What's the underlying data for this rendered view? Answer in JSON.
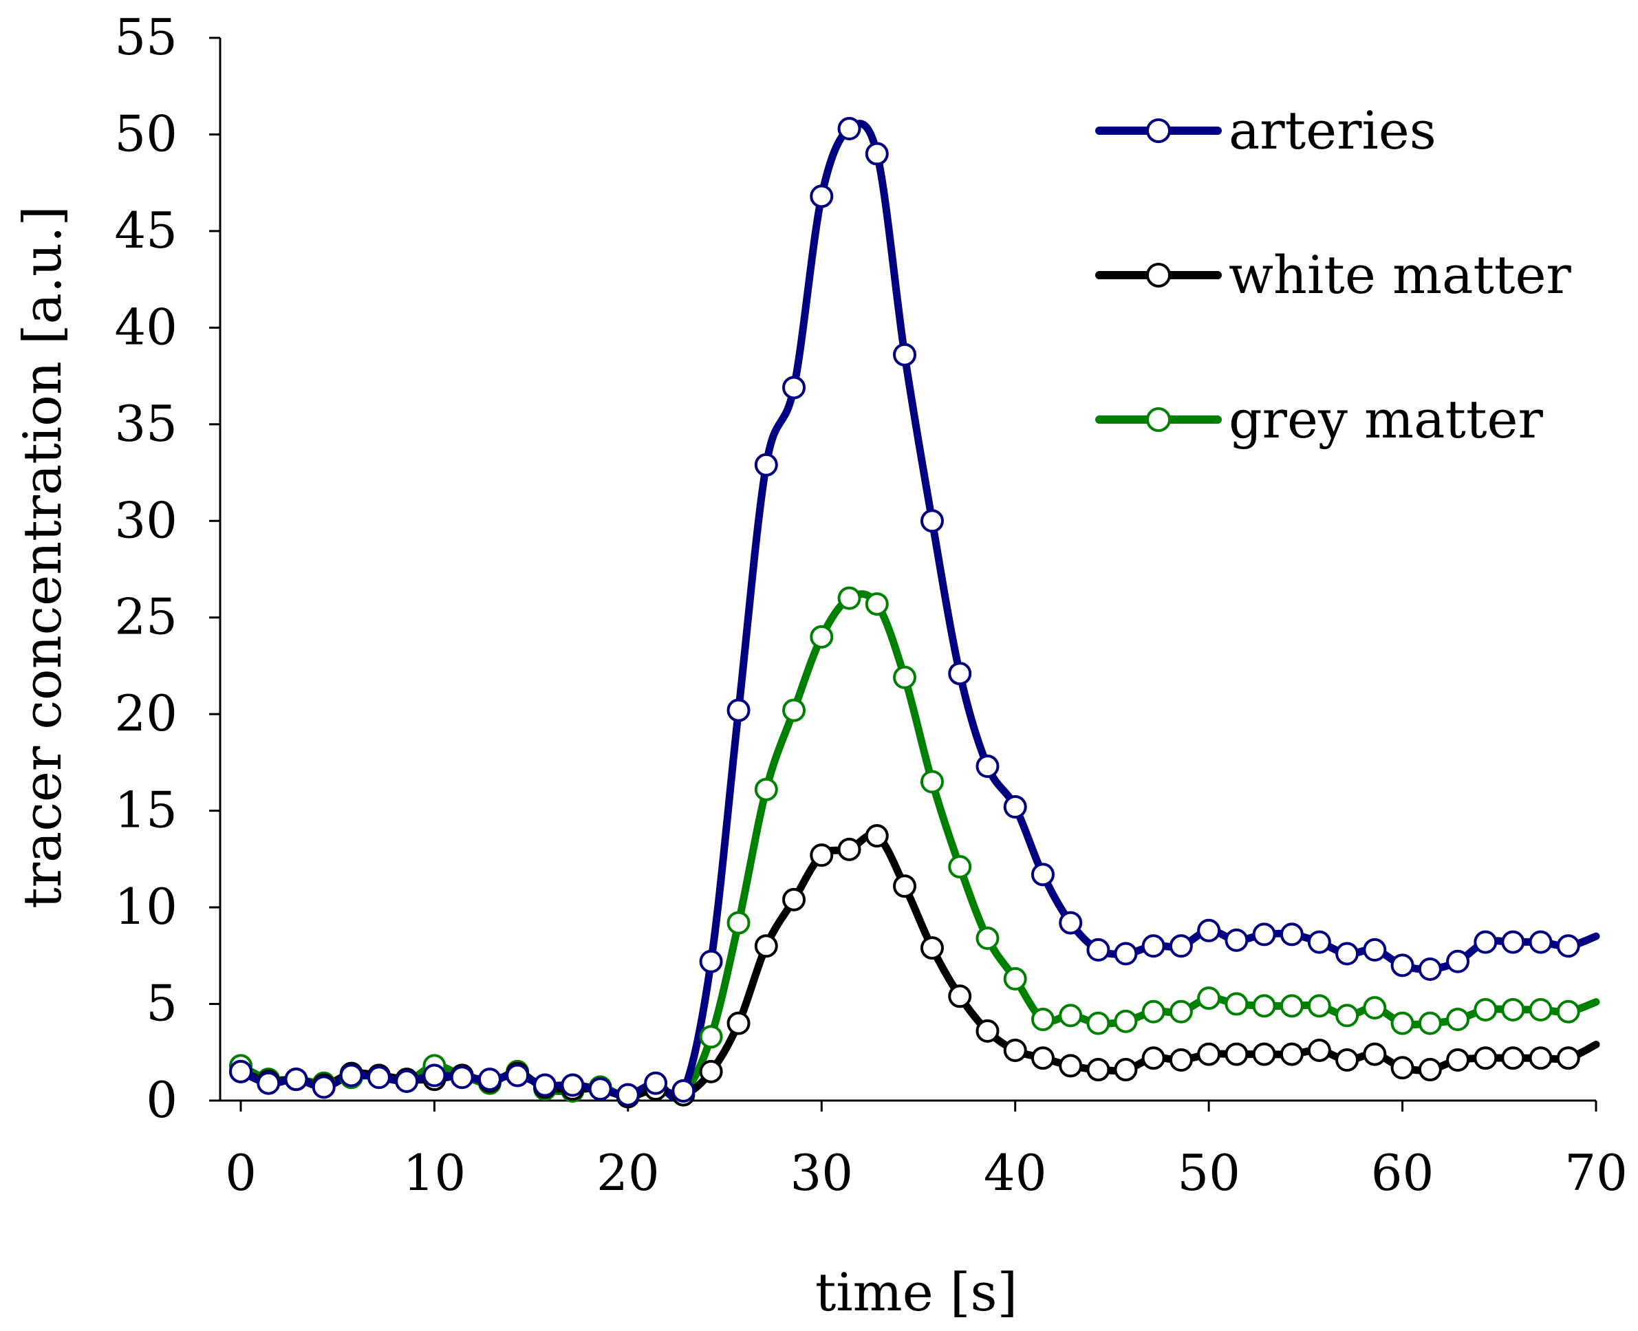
{
  "chart_data": {
    "type": "line",
    "title": "",
    "xlabel": "time [s]",
    "ylabel": "tracer concentration [a.u.]",
    "xlim": [
      0,
      70
    ],
    "ylim": [
      0,
      55
    ],
    "xticks": [
      0,
      10,
      20,
      30,
      40,
      50,
      60,
      70
    ],
    "yticks": [
      0,
      5,
      10,
      15,
      20,
      25,
      30,
      35,
      40,
      45,
      50,
      55
    ],
    "grid": false,
    "legend_position": "top-right",
    "x": [
      0,
      1.43,
      2.86,
      4.29,
      5.71,
      7.14,
      8.57,
      10,
      11.43,
      12.86,
      14.29,
      15.71,
      17.14,
      18.57,
      20,
      21.43,
      22.86,
      24.29,
      25.71,
      27.14,
      28.57,
      30,
      31.43,
      32.86,
      34.29,
      35.71,
      37.14,
      38.57,
      40,
      41.43,
      42.86,
      44.29,
      45.71,
      47.14,
      48.57,
      50,
      51.43,
      52.86,
      54.29,
      55.71,
      57.14,
      58.57,
      60,
      61.43,
      62.86,
      64.29,
      65.71,
      67.14,
      68.57
    ],
    "series": [
      {
        "name": "arteries",
        "color": "#000080",
        "values": [
          1.5,
          0.9,
          1.1,
          0.7,
          1.3,
          1.2,
          1.0,
          1.3,
          1.2,
          1.1,
          1.3,
          0.8,
          0.8,
          0.6,
          0.3,
          0.9,
          0.5,
          7.2,
          20.2,
          32.9,
          36.9,
          46.8,
          50.3,
          49.0,
          38.6,
          30.0,
          22.1,
          17.3,
          15.2,
          11.7,
          9.2,
          7.8,
          7.6,
          8.0,
          8.0,
          8.8,
          8.3,
          8.6,
          8.6,
          8.2,
          7.6,
          7.8,
          7.0,
          6.8,
          7.2,
          8.2,
          8.2,
          8.2,
          8.0
        ],
        "end_value": 8.5
      },
      {
        "name": "white matter",
        "color": "#000000",
        "values": [
          1.5,
          1.0,
          1.1,
          0.8,
          1.4,
          1.3,
          1.1,
          1.1,
          1.3,
          1.0,
          1.4,
          0.7,
          0.6,
          0.6,
          0.2,
          0.6,
          0.3,
          1.5,
          4.0,
          8.0,
          10.4,
          12.7,
          13.0,
          13.7,
          11.1,
          7.9,
          5.4,
          3.6,
          2.6,
          2.2,
          1.8,
          1.6,
          1.6,
          2.2,
          2.1,
          2.4,
          2.4,
          2.4,
          2.4,
          2.6,
          2.1,
          2.4,
          1.7,
          1.6,
          2.1,
          2.2,
          2.2,
          2.2,
          2.2
        ],
        "end_value": 2.9
      },
      {
        "name": "grey matter",
        "color": "#008000",
        "values": [
          1.8,
          1.1,
          1.1,
          0.9,
          1.2,
          1.3,
          1.0,
          1.8,
          1.3,
          0.9,
          1.5,
          0.6,
          0.5,
          0.7,
          0.2,
          0.6,
          0.4,
          3.3,
          9.2,
          16.1,
          20.2,
          24.0,
          26.0,
          25.7,
          21.9,
          16.5,
          12.1,
          8.4,
          6.3,
          4.2,
          4.4,
          4.0,
          4.1,
          4.6,
          4.6,
          5.3,
          5.0,
          4.9,
          4.9,
          4.9,
          4.4,
          4.8,
          4.0,
          4.0,
          4.2,
          4.7,
          4.7,
          4.7,
          4.6
        ],
        "end_value": 5.1
      }
    ]
  }
}
